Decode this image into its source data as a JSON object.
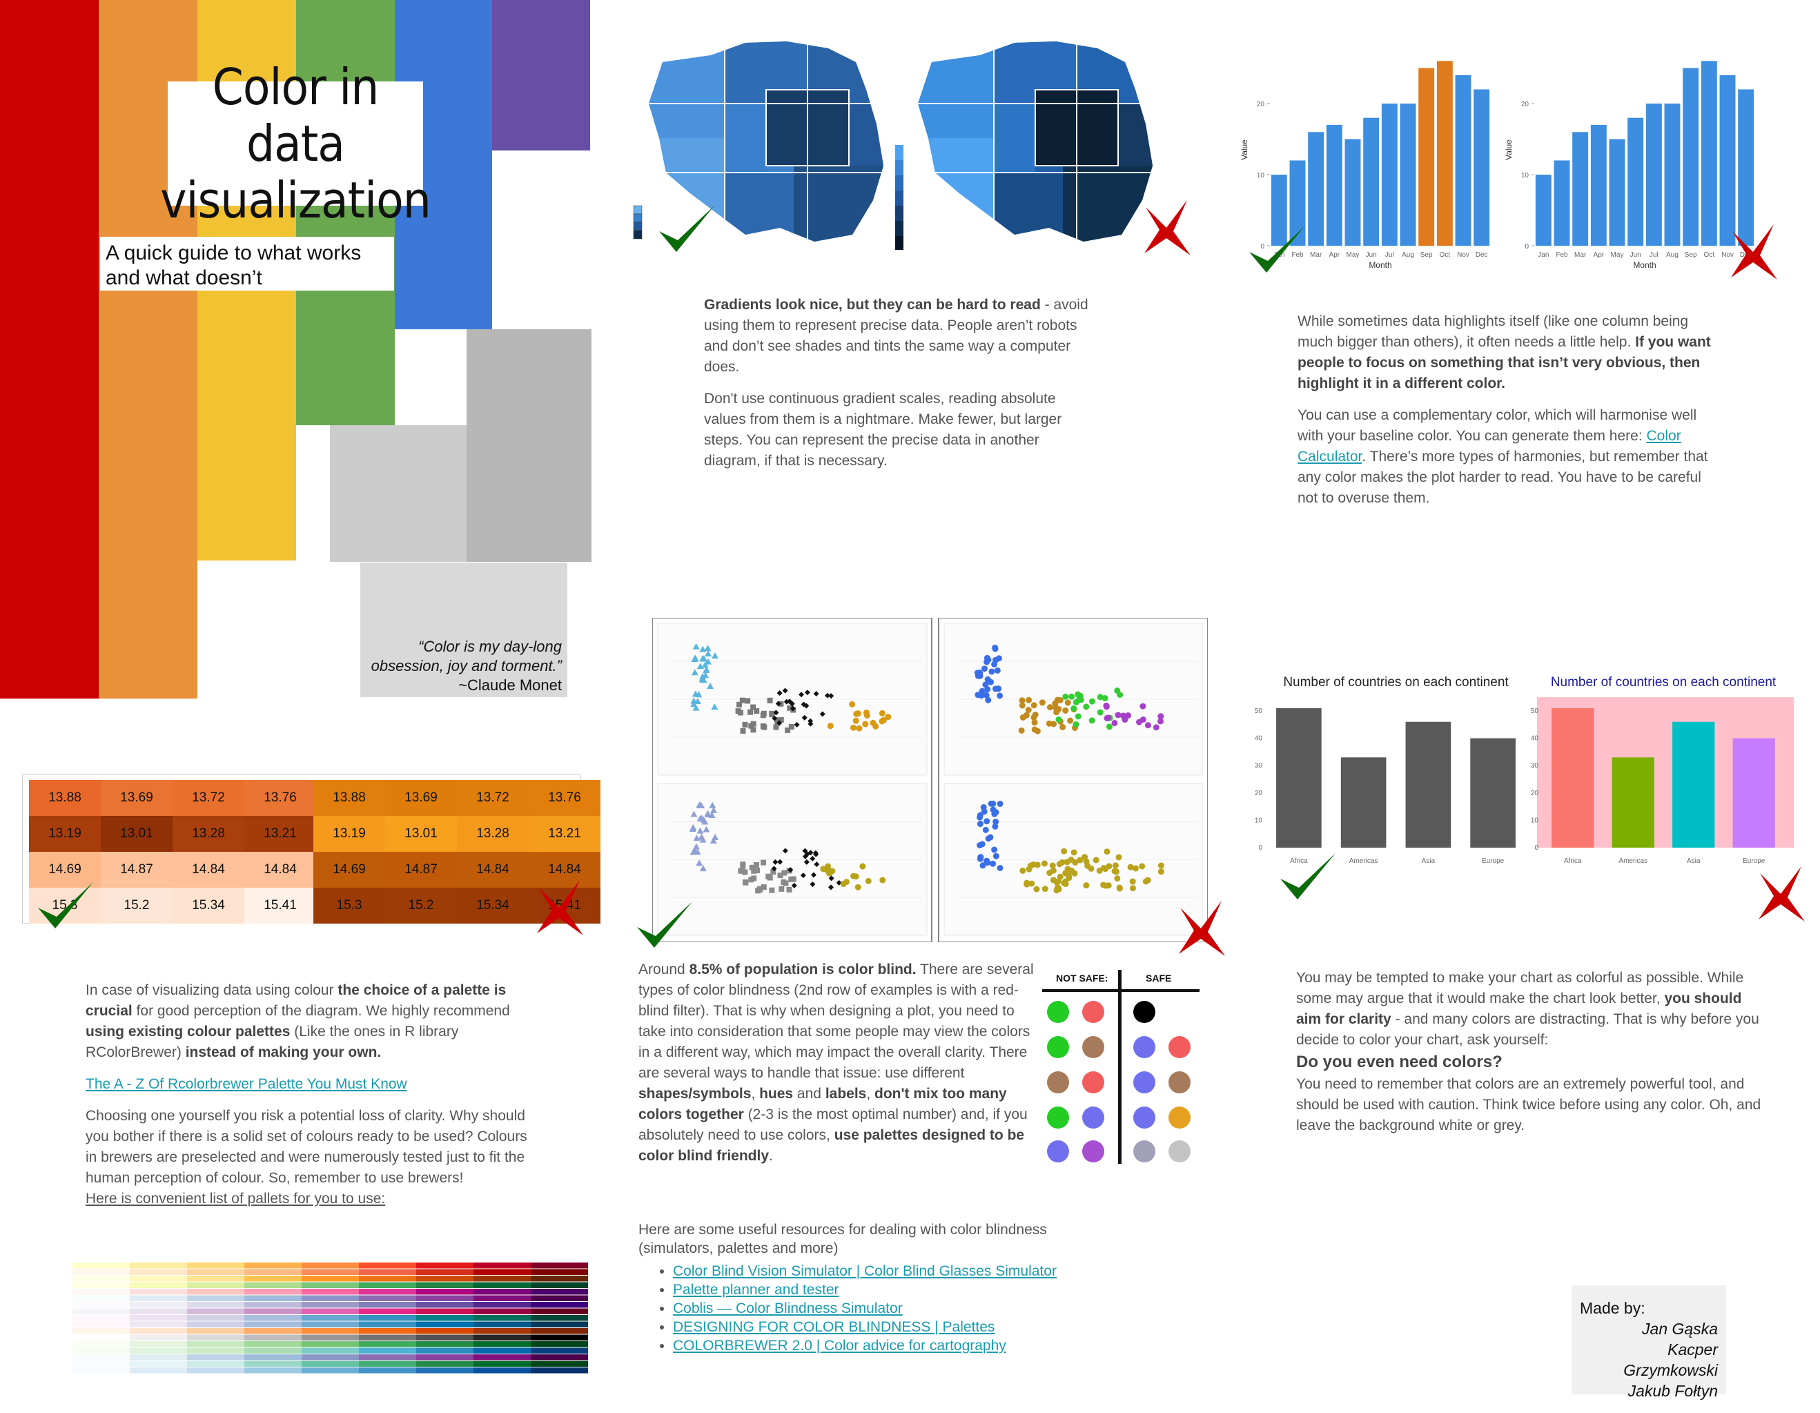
{
  "title": "Color in data visualization",
  "subtitle": "A quick guide to what works and what doesn’t",
  "quote": {
    "text": "“Color is my day-long obsession, joy and torment.”",
    "author": "~Claude Monet"
  },
  "colors": {
    "rainbow": [
      "#cc0000",
      "#e8923a",
      "#f1c232",
      "#6aa84f",
      "#3c78d8",
      "#674ea7"
    ],
    "greys": [
      "#b7b7b7",
      "#cccccc",
      "#d9d9d9"
    ],
    "check": "#0b6b0b",
    "cross": "#cc0000",
    "link": "#1a9bb0"
  },
  "gradients": {
    "p1_pre": "Gradients look nice, but they can be hard to read",
    "p1_post": " - avoid using them to represent precise data. People aren’t robots and don’t see shades and tints the same way a computer does.",
    "p2": "Don't use continuous gradient scales, reading absolute values from them is a nightmare. Make fewer, but larger steps. You can represent the precise data in another diagram, if that is necessary."
  },
  "highlight": {
    "p1_pre": "While sometimes data highlights itself (like one column being much bigger than others), it often needs a little help. ",
    "p1_bold": "If you want people to focus on something that isn’t very obvious, then highlight it in a different color.",
    "p2_pre": "You can use a complementary color, which will harmonise well with your baseline color. You can generate them here: ",
    "p2_link": "Color Calculator",
    "p2_post": ". There’s more types of harmonies, but remember that any color makes the plot harder to read. You have to be careful not to overuse them."
  },
  "palette": {
    "p1_a": "In case of visualizing data using colour ",
    "p1_b": "the choice of a palette is crucial",
    "p1_c": " for good perception of the diagram. We highly recommend ",
    "p1_d": "using existing colour palettes",
    "p1_e": " (Like the ones in R library RColorBrewer) ",
    "p1_f": "instead of making your own.",
    "link": "The A - Z Of Rcolorbrewer Palette You Must Know",
    "p2": "Choosing one yourself you risk a potential loss of clarity. Why should you bother if there is a solid set of colours ready to be used? Colours in brewers are preselected and were numerously tested just to fit the human perception of colour. So, remember to use brewers!",
    "p3": "Here is convenient list of pallets for you to use:"
  },
  "colorblind": {
    "a": "Around ",
    "b": "8.5% of population is color blind.",
    "c": " There are several types of color blindness (2nd row of examples is with a red-blind filter). That is why when designing a plot, you need to take into consideration that some people may view the colors in a different way, which may impact the overall clarity. There are several ways to handle that issue: use different ",
    "d": "shapes/symbols",
    "e": ", ",
    "f": "hues",
    "g": " and ",
    "h": "labels",
    "i": ", ",
    "j": "don't mix too many colors together",
    "k": " (2-3 is the most optimal number) and, if you absolutely need to use colors, ",
    "l": "use palettes designed to be color blind friendly",
    "m": ".",
    "not_safe": "NOT SAFE:",
    "safe": "SAFE"
  },
  "resources": {
    "intro": "Here are some useful resources for dealing with color blindness (simulators, palettes and more)",
    "links": [
      "Color Blind Vision Simulator | Color Blind Glasses Simulator",
      "Palette planner and tester",
      "Coblis — Color Blindness Simulator",
      "DESIGNING FOR COLOR BLINDNESS | Palettes",
      "COLORBREWER 2.0 | Color advice for cartography"
    ]
  },
  "clarity": {
    "p1_a": "You may be tempted to make your chart as colorful as possible. While some may argue that it would make the chart look better, ",
    "p1_b": "you should aim for clarity",
    "p1_c": " - and  many colors are distracting. That is why before you decide to color your chart, ask yourself:",
    "question": "Do you even need colors?",
    "p2": "You need to remember that colors are an extremely powerful tool, and should be used with caution. Think twice before using any color. Oh, and leave the background white or grey."
  },
  "made_by": {
    "label": "Made by:",
    "names": [
      "Jan Gąska",
      "Kacper Grzymkowski",
      "Jakub Fołtyn"
    ]
  },
  "heatmap": {
    "rows": [
      [
        "13.88",
        "13.69",
        "13.72",
        "13.76"
      ],
      [
        "13.19",
        "13.01",
        "13.28",
        "13.21"
      ],
      [
        "14.69",
        "14.87",
        "14.84",
        "14.84"
      ],
      [
        "15.3",
        "15.2",
        "15.34",
        "15.41"
      ]
    ]
  },
  "chart_data": [
    {
      "type": "bar",
      "categories": [
        "Jan",
        "Feb",
        "Mar",
        "Apr",
        "May",
        "Jun",
        "Jul",
        "Aug",
        "Sep",
        "Oct",
        "Nov",
        "Dec"
      ],
      "values": [
        10,
        12,
        16,
        17,
        15,
        18,
        20,
        20,
        25,
        26,
        24,
        22
      ],
      "highlight": [
        "Sep",
        "Oct"
      ],
      "xlabel": "Month",
      "ylabel": "Value",
      "yticks": [
        "0",
        "10",
        "20"
      ],
      "ylim": [
        0,
        27
      ],
      "colors": {
        "base": "#3d8ee0",
        "highlight": "#e07a1f"
      }
    },
    {
      "type": "bar",
      "categories": [
        "Jan",
        "Feb",
        "Mar",
        "Apr",
        "May",
        "Jun",
        "Jul",
        "Aug",
        "Sep",
        "Oct",
        "Nov",
        "Dec"
      ],
      "values": [
        10,
        12,
        16,
        17,
        15,
        18,
        20,
        20,
        25,
        26,
        24,
        22
      ],
      "xlabel": "Month",
      "ylabel": "Value",
      "yticks": [
        "0",
        "10",
        "20"
      ],
      "ylim": [
        0,
        27
      ],
      "colors": {
        "base": "#3d8ee0"
      }
    },
    {
      "type": "bar",
      "title": "Number of countries on each continent",
      "categories": [
        "Africa",
        "Americas",
        "Asia",
        "Europe"
      ],
      "values": [
        51,
        33,
        46,
        40
      ],
      "yticks": [
        "0",
        "10",
        "20",
        "30",
        "40",
        "50"
      ],
      "ylim": [
        0,
        53
      ],
      "colors": {
        "base": "#595959"
      }
    },
    {
      "type": "bar",
      "title": "Number of countries on each continent",
      "categories": [
        "Africa",
        "Americas",
        "Asia",
        "Europe"
      ],
      "values": [
        51,
        33,
        46,
        40
      ],
      "yticks": [
        "0",
        "10",
        "20",
        "30",
        "40",
        "50"
      ],
      "ylim": [
        0,
        53
      ],
      "colors": {
        "bars": [
          "#f8766d",
          "#7cae00",
          "#00bfc4",
          "#c77cff"
        ],
        "background": "#ffc0cb",
        "title": "#1a1a99"
      }
    }
  ]
}
